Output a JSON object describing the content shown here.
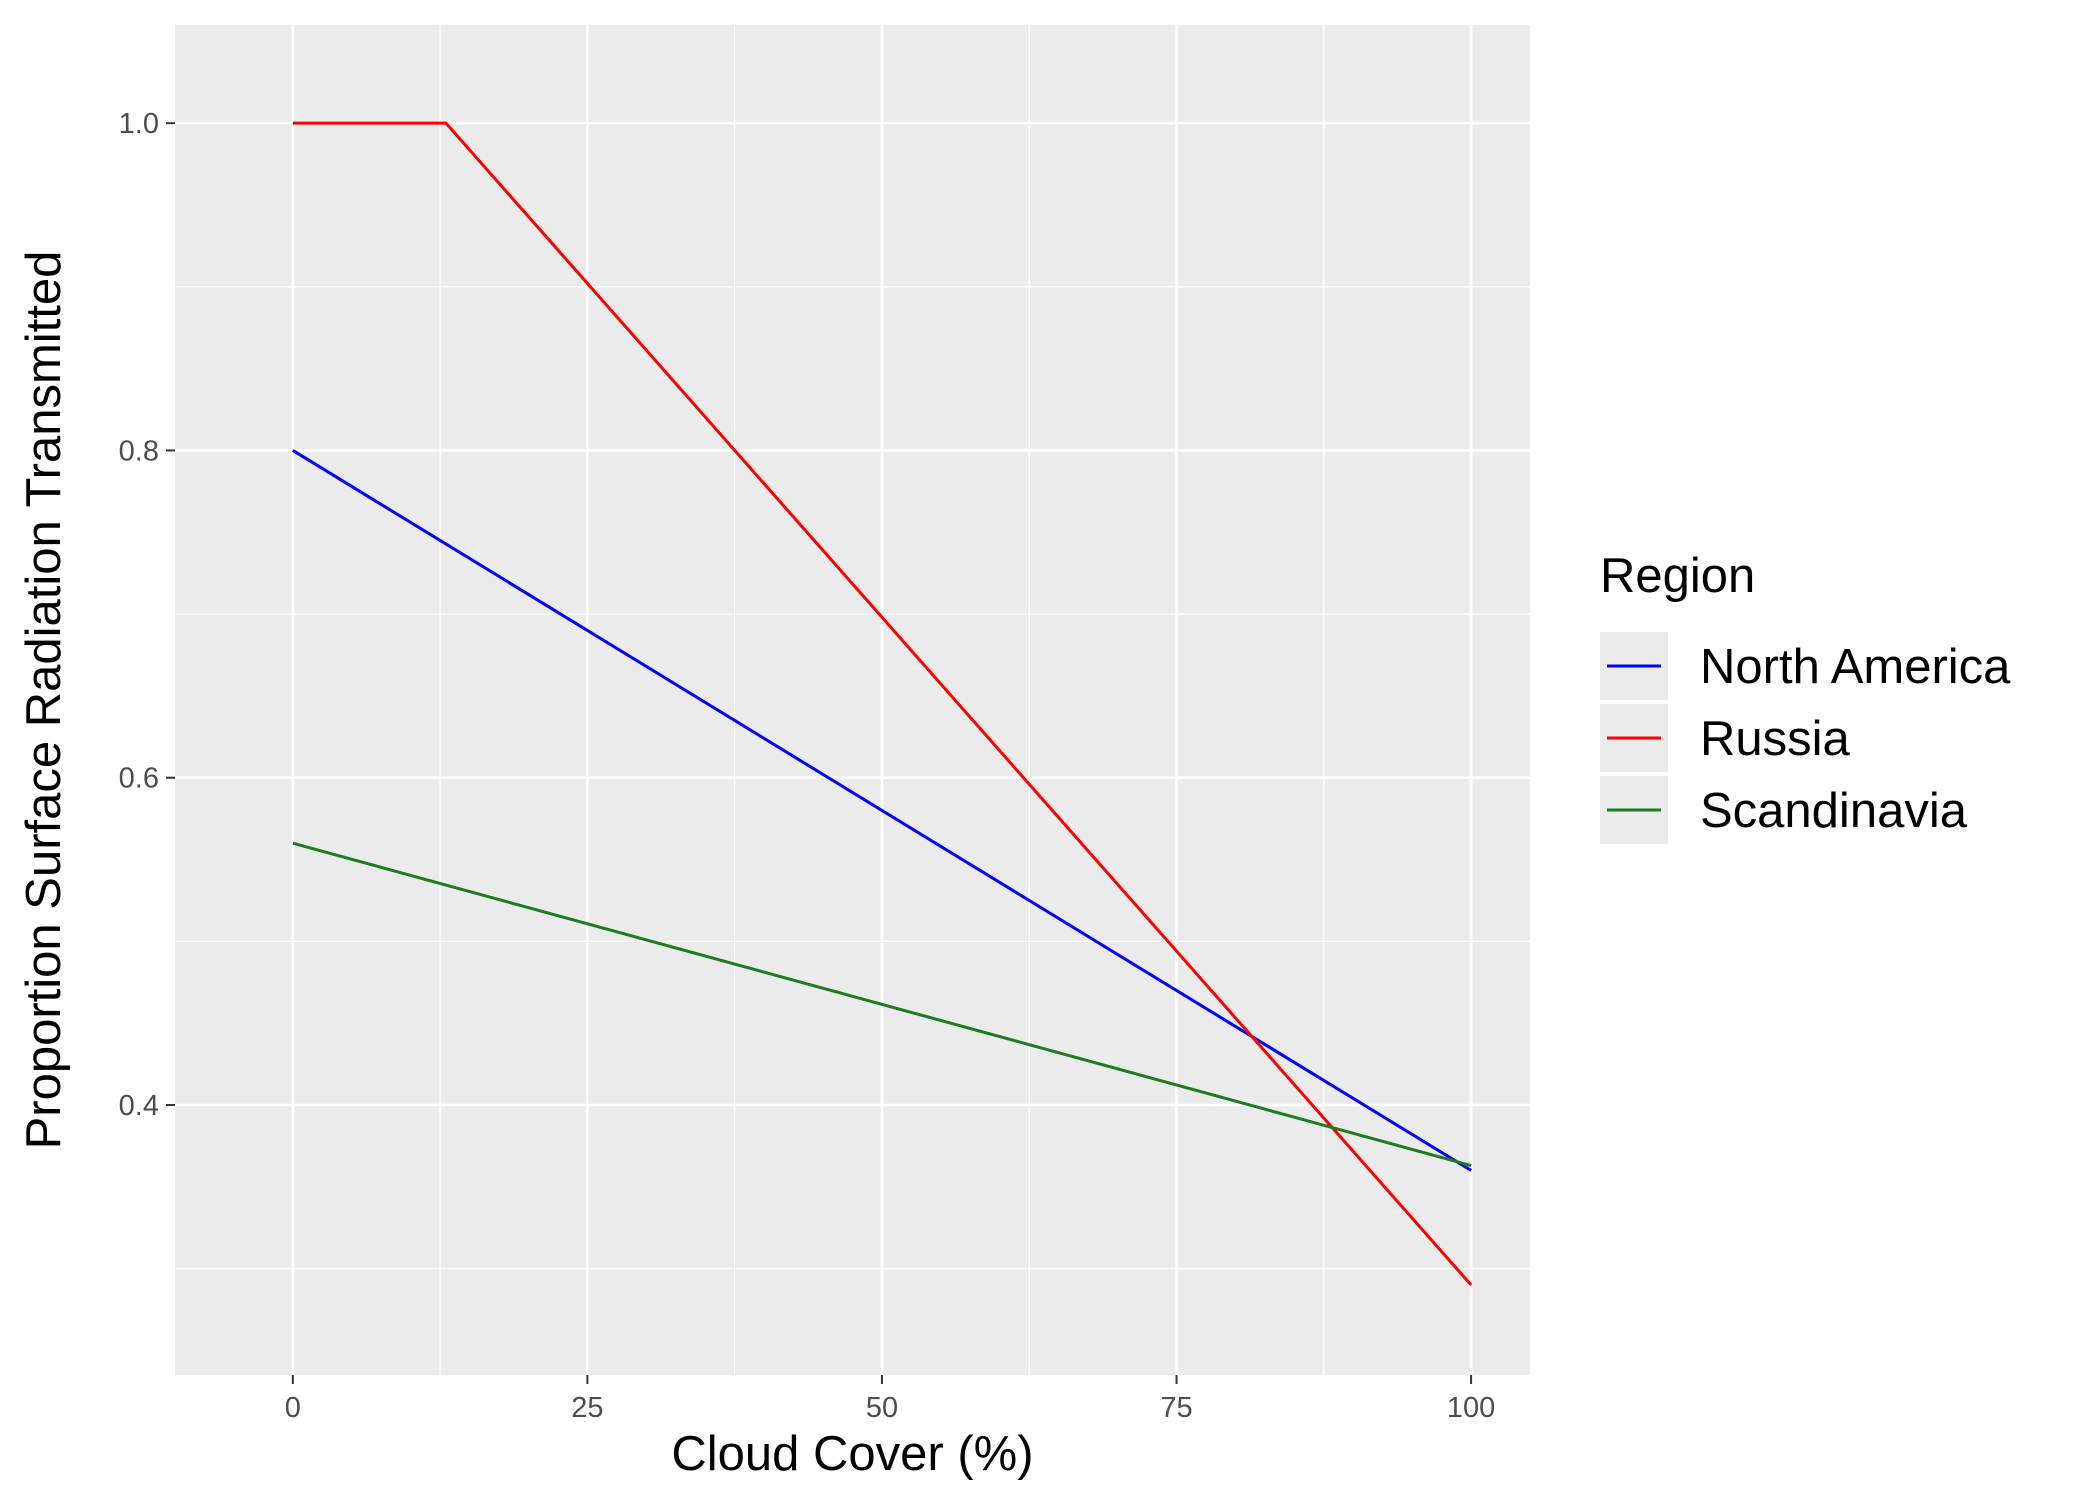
{
  "chart_data": {
    "type": "line",
    "xlabel": "Cloud Cover (%)",
    "ylabel": "Proportion Surface Radiation Transmitted",
    "xlim": [
      -10,
      105
    ],
    "ylim": [
      0.235,
      1.06
    ],
    "x_ticks": [
      0,
      25,
      50,
      75,
      100
    ],
    "y_ticks": [
      0.4,
      0.6,
      0.8,
      1.0
    ],
    "x_tick_labels": [
      "0",
      "25",
      "50",
      "75",
      "100"
    ],
    "y_tick_labels": [
      "0.4",
      "0.6",
      "0.8",
      "1.0"
    ],
    "x_minor": [
      12.5,
      37.5,
      62.5,
      87.5
    ],
    "y_minor": [
      0.3,
      0.5,
      0.7,
      0.9
    ],
    "grid": true,
    "legend": {
      "title": "Region",
      "position": "right"
    },
    "series": [
      {
        "name": "North America",
        "color": "#0000FF",
        "points": [
          [
            0,
            0.8
          ],
          [
            100,
            0.36
          ]
        ]
      },
      {
        "name": "Russia",
        "color": "#FF0000",
        "points": [
          [
            0,
            1.0
          ],
          [
            13,
            1.0
          ],
          [
            100,
            0.29
          ]
        ]
      },
      {
        "name": "Scandinavia",
        "color": "#1E7B1E",
        "points": [
          [
            0,
            0.56
          ],
          [
            100,
            0.363
          ]
        ]
      }
    ],
    "colors": {
      "panel_background": "#EBEBEB",
      "grid": "#FFFFFF",
      "tick_label": "#4D4D4D",
      "title_text": "#000000"
    }
  }
}
